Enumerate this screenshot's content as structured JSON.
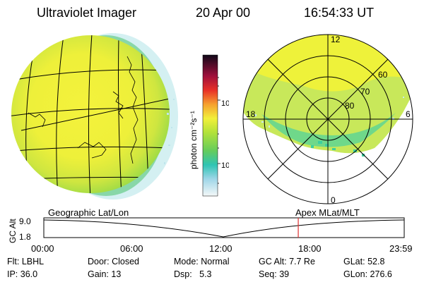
{
  "header": {
    "instrument": "Ultraviolet Imager",
    "date": "20 Apr 00",
    "time": "16:54:33 UT"
  },
  "colorbar": {
    "label": "photon cm⁻²s⁻¹",
    "ticks": [
      "100",
      "10"
    ]
  },
  "polar_plot": {
    "mlt_labels": {
      "top": "12",
      "left": "18",
      "right": "6",
      "bottom": "0"
    },
    "lat_labels": [
      "60",
      "70",
      "80"
    ]
  },
  "timeline": {
    "left_title": "Geographic Lat/Lon",
    "right_title": "Apex MLat/MLT",
    "axis_label": "GC Alt",
    "y_ticks": [
      "9.0",
      "1.8"
    ],
    "x_ticks": [
      "00:00",
      "06:00",
      "12:00",
      "18:00",
      "23:59"
    ],
    "current_time_fraction": 0.706
  },
  "info": {
    "row1": [
      {
        "label": "Flt:",
        "value": "LBHL"
      },
      {
        "label": "Door:",
        "value": "Closed"
      },
      {
        "label": "Mode:",
        "value": "Normal"
      },
      {
        "label": "GC Alt:",
        "value": "7.7 Re"
      },
      {
        "label": "GLat:",
        "value": "52.8"
      }
    ],
    "row2": [
      {
        "label": "IP:",
        "value": "36.0"
      },
      {
        "label": "Gain:",
        "value": "13"
      },
      {
        "label": "Dsp:",
        "value": "5.3"
      },
      {
        "label": "Seq:",
        "value": "39"
      },
      {
        "label": "GLon:",
        "value": "276.6"
      }
    ]
  },
  "colors": {
    "accent_line": "#e03030",
    "glow_yellow": "#f2f03a",
    "glow_green": "#a8e040"
  }
}
